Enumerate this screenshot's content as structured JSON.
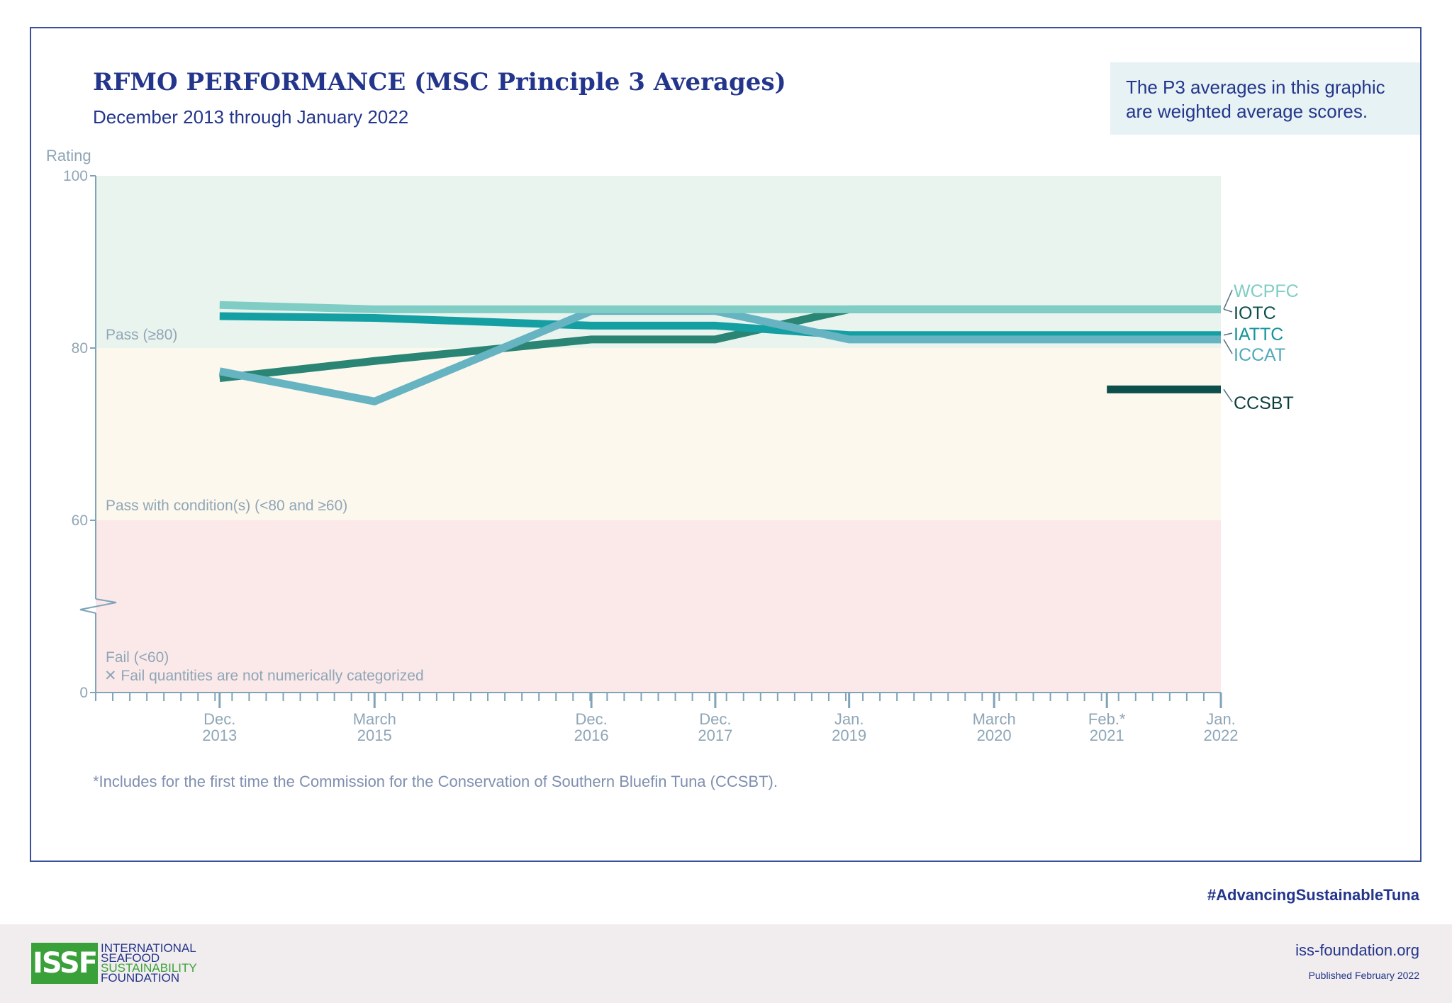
{
  "header": {
    "title": "RFMO PERFORMANCE (MSC Principle 3 Averages)",
    "subtitle": "December 2013 through January 2022"
  },
  "note": "The P3 averages in this graphic are weighted average scores.",
  "chart_data": {
    "type": "line",
    "ylabel": "Rating",
    "yticks": [
      "100",
      "80",
      "60",
      "0"
    ],
    "ylim": [
      0,
      100
    ],
    "axis_break": true,
    "x_ticks": [
      {
        "line1": "Dec.",
        "line2": "2013",
        "x": 2013.92
      },
      {
        "line1": "March",
        "line2": "2015",
        "x": 2015.17
      },
      {
        "line1": "Dec.",
        "line2": "2016",
        "x": 2016.92
      },
      {
        "line1": "Dec.",
        "line2": "2017",
        "x": 2017.92
      },
      {
        "line1": "Jan.",
        "line2": "2019",
        "x": 2019.0
      },
      {
        "line1": "March",
        "line2": "2020",
        "x": 2020.17
      },
      {
        "line1": "Feb.*",
        "line2": "2021",
        "x": 2021.08
      },
      {
        "line1": "Jan.",
        "line2": "2022",
        "x": 2022.0
      }
    ],
    "xlim": [
      2012.92,
      2022.0
    ],
    "bands": [
      {
        "label": "Pass (≥80)",
        "from": 80,
        "to": 100,
        "color": "#eaf4ef"
      },
      {
        "label": "Pass with condition(s) (<80 and ≥60)",
        "from": 60,
        "to": 80,
        "color": "#fdf8ee"
      },
      {
        "label": "Fail (<60)",
        "from": 0,
        "to": 60,
        "color": "#fbe9ea"
      }
    ],
    "fail_note": "✕ Fail quantities are not numerically categorized",
    "series": [
      {
        "name": "WCPFC",
        "color": "#7fcdc4",
        "x": [
          2013.92,
          2015.17,
          2016.92,
          2017.92,
          2019.0,
          2020.17,
          2021.08,
          2022.0
        ],
        "values": [
          85.0,
          84.5,
          84.5,
          84.5,
          84.5,
          84.5,
          84.5,
          84.5
        ]
      },
      {
        "name": "IOTC",
        "color": "#2a8575",
        "x": [
          2013.92,
          2015.17,
          2016.92,
          2017.92,
          2019.0,
          2020.17,
          2021.08,
          2022.0
        ],
        "values": [
          76.5,
          78.5,
          81.0,
          81.0,
          84.5,
          84.5,
          84.5,
          84.5
        ]
      },
      {
        "name": "IATTC",
        "color": "#14a0a3",
        "x": [
          2013.92,
          2015.17,
          2016.92,
          2017.92,
          2019.0,
          2020.17,
          2021.08,
          2022.0
        ],
        "values": [
          83.7,
          83.5,
          82.6,
          82.6,
          81.5,
          81.5,
          81.5,
          81.5
        ]
      },
      {
        "name": "ICCAT",
        "color": "#66b3c2",
        "x": [
          2013.92,
          2015.17,
          2016.92,
          2017.92,
          2019.0,
          2020.17,
          2021.08,
          2022.0
        ],
        "values": [
          77.3,
          73.8,
          84.3,
          84.3,
          81.0,
          81.0,
          81.0,
          81.0
        ]
      },
      {
        "name": "CCSBT",
        "color": "#0d4f4b",
        "x": [
          2021.08,
          2022.0
        ],
        "values": [
          75.2,
          75.2
        ]
      }
    ]
  },
  "footnote": "*Includes for the first time the Commission for the Conservation of Southern Bluefin Tuna (CCSBT).",
  "hashtag": "#AdvancingSustainableTuna",
  "footer": {
    "logo_mark": "ISSF",
    "logo_lines": [
      "INTERNATIONAL",
      "SEAFOOD",
      "SUSTAINABILITY",
      "FOUNDATION"
    ],
    "website": "iss-foundation.org",
    "published": "Published February 2022"
  },
  "colors": {
    "brand_navy": "#24368c",
    "brand_green": "#3aa13a",
    "axis": "#7fa3b8"
  }
}
